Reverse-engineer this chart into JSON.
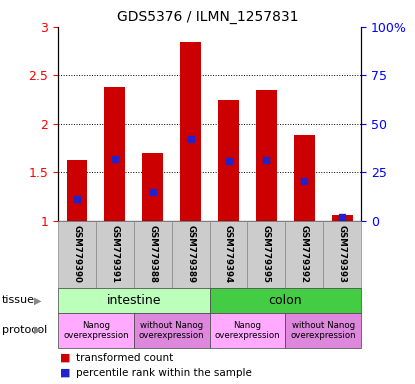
{
  "title": "GDS5376 / ILMN_1257831",
  "samples": [
    "GSM779390",
    "GSM779391",
    "GSM779388",
    "GSM779389",
    "GSM779394",
    "GSM779395",
    "GSM779392",
    "GSM779393"
  ],
  "bar_heights": [
    1.63,
    2.38,
    1.7,
    2.84,
    2.25,
    2.35,
    1.88,
    1.06
  ],
  "blue_positions": [
    1.22,
    1.64,
    1.3,
    1.84,
    1.62,
    1.63,
    1.41,
    1.04
  ],
  "ylim": [
    1.0,
    3.0
  ],
  "left_yticks": [
    1.0,
    1.5,
    2.0,
    2.5,
    3.0
  ],
  "left_yticklabels": [
    "1",
    "1.5",
    "2",
    "2.5",
    "3"
  ],
  "right_yticks": [
    0,
    25,
    50,
    75,
    100
  ],
  "right_yticklabels": [
    "0",
    "25",
    "50",
    "75",
    "100%"
  ],
  "bar_color": "#cc0000",
  "blue_color": "#2222cc",
  "tissue_configs": [
    {
      "indices": [
        0,
        1,
        2,
        3
      ],
      "label": "intestine",
      "color": "#bbffbb"
    },
    {
      "indices": [
        4,
        5,
        6,
        7
      ],
      "label": "colon",
      "color": "#44cc44"
    }
  ],
  "protocol_configs": [
    {
      "indices": [
        0,
        1
      ],
      "label": "Nanog\noverexpression",
      "color": "#ffaaff"
    },
    {
      "indices": [
        2,
        3
      ],
      "label": "without Nanog\noverexpression",
      "color": "#dd88dd"
    },
    {
      "indices": [
        4,
        5
      ],
      "label": "Nanog\noverexpression",
      "color": "#ffaaff"
    },
    {
      "indices": [
        6,
        7
      ],
      "label": "without Nanog\noverexpression",
      "color": "#dd88dd"
    }
  ],
  "tissue_row_label": "tissue",
  "protocol_row_label": "protocol",
  "legend_items": [
    {
      "label": "transformed count",
      "color": "#cc0000"
    },
    {
      "label": "percentile rank within the sample",
      "color": "#2222cc"
    }
  ],
  "bar_width": 0.55,
  "sample_box_color": "#cccccc",
  "grid_color": "#000000",
  "bg_color": "#ffffff"
}
